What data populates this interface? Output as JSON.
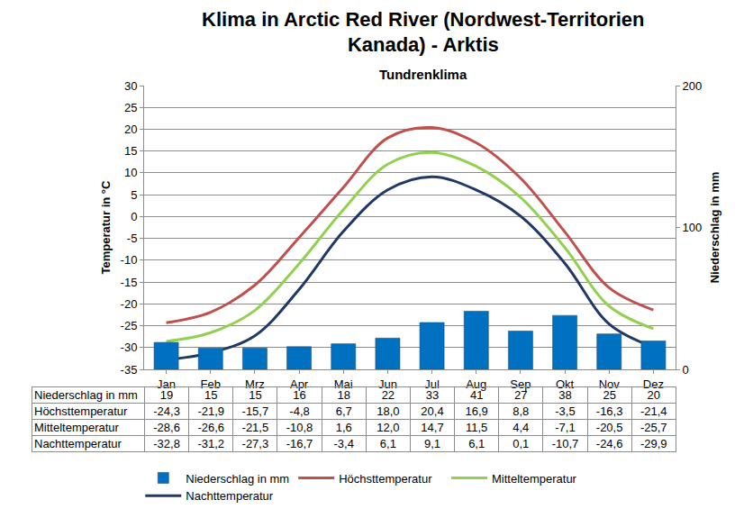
{
  "chart_data": {
    "type": "combo",
    "title": "Klima in Arctic Red River (Nordwest-Territorien\nKanada) - Arktis",
    "subtitle": "Tundrenklima",
    "ylabel": "Temperatur in °C",
    "y2label": "Niederschlag in mm",
    "categories": [
      "Jan",
      "Feb",
      "Mrz",
      "Apr",
      "Mai",
      "Jun",
      "Jul",
      "Aug",
      "Sep",
      "Okt",
      "Nov",
      "Dez"
    ],
    "ylim": [
      -35,
      30
    ],
    "yticks": [
      -35,
      -30,
      -25,
      -20,
      -15,
      -10,
      -5,
      0,
      5,
      10,
      15,
      20,
      25,
      30
    ],
    "y2lim": [
      0,
      200
    ],
    "y2ticks": [
      0,
      100,
      200
    ],
    "grid": true,
    "legend": "bottom",
    "series": [
      {
        "name": "Niederschlag in mm",
        "type": "bar",
        "axis": "y2",
        "color": "#0070c0",
        "values": [
          19,
          15,
          15,
          16,
          18,
          22,
          33,
          41,
          27,
          38,
          25,
          20
        ]
      },
      {
        "name": "Höchsttemperatur",
        "type": "line",
        "color": "#c0504d",
        "line_style": "solid",
        "values": [
          -24.3,
          -21.9,
          -15.7,
          -4.8,
          6.7,
          18.0,
          20.4,
          16.9,
          8.8,
          -3.5,
          -16.3,
          -21.4
        ],
        "value_labels": [
          "-24,3",
          "-21,9",
          "-15,7",
          "-4,8",
          "6,7",
          "18,0",
          "20,4",
          "16,9",
          "8,8",
          "-3,5",
          "-16,3",
          "-21,4"
        ]
      },
      {
        "name": "Mitteltemperatur",
        "type": "line",
        "color": "#92d050",
        "line_style": "solid",
        "values": [
          -28.6,
          -26.6,
          -21.5,
          -10.8,
          1.6,
          12.0,
          14.7,
          11.5,
          4.4,
          -7.1,
          -20.5,
          -25.7
        ],
        "value_labels": [
          "-28,6",
          "-26,6",
          "-21,5",
          "-10,8",
          "1,6",
          "12,0",
          "14,7",
          "11,5",
          "4,4",
          "-7,1",
          "-20,5",
          "-25,7"
        ]
      },
      {
        "name": "Nachttemperatur",
        "type": "line",
        "color": "#1f3864",
        "line_style": "solid",
        "values": [
          -32.8,
          -31.2,
          -27.3,
          -16.7,
          -3.4,
          6.1,
          9.1,
          6.1,
          0.1,
          -10.7,
          -24.6,
          -29.9
        ],
        "value_labels": [
          "-32,8",
          "-31,2",
          "-27,3",
          "-16,7",
          "-3,4",
          "6,1",
          "9,1",
          "6,1",
          "0,1",
          "-10,7",
          "-24,6",
          "-29,9"
        ]
      }
    ]
  }
}
